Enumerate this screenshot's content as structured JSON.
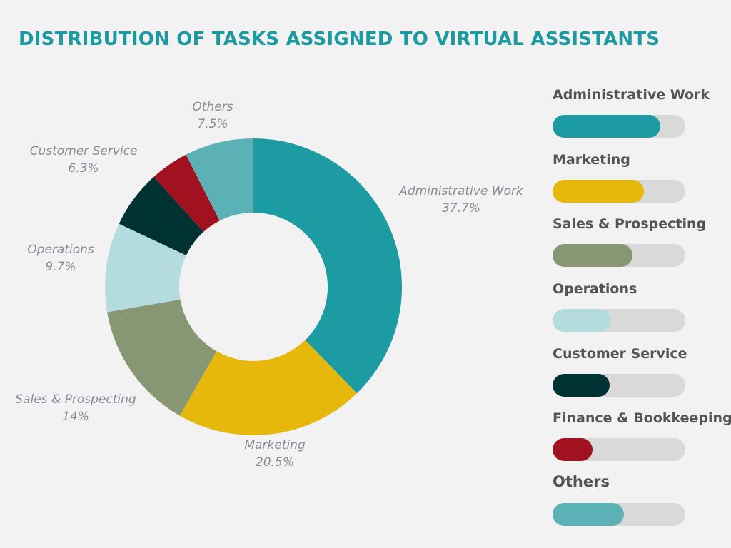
{
  "title": "DISTRIBUTION OF TASKS ASSIGNED TO VIRTUAL ASSISTANTS",
  "colors": {
    "title": "#1c9aa2",
    "background": "#f2f2f2",
    "label_text": "#8a8a96",
    "legend_text": "#545454",
    "track": "#d9d9d9"
  },
  "chart_data": {
    "type": "pie",
    "variant": "donut",
    "title": "DISTRIBUTION OF TASKS ASSIGNED TO VIRTUAL ASSISTANTS",
    "slices": [
      {
        "label": "Administrative Work",
        "value": 37.7,
        "value_text": "37.7%",
        "color": "#1c9ba3"
      },
      {
        "label": "Marketing",
        "value": 20.5,
        "value_text": "20.5%",
        "color": "#e5b80b"
      },
      {
        "label": "Sales & Prospecting",
        "value": 14,
        "value_text": "14%",
        "color": "#879673"
      },
      {
        "label": "Operations",
        "value": 9.7,
        "value_text": "9.7%",
        "color": "#b4dcdf"
      },
      {
        "label": "Customer Service",
        "value": 6.3,
        "value_text": "6.3%",
        "color": "#003133"
      },
      {
        "label": "Finance & Bookkeeping",
        "value": 4.2,
        "value_text": "",
        "color": "#a11220"
      },
      {
        "label": "Others",
        "value": 7.5,
        "value_text": "7.5%",
        "color": "#5bb1b6"
      }
    ]
  },
  "legend": {
    "items": [
      {
        "label": "Administrative Work",
        "fill": 0.81,
        "color": "#1c9ba3"
      },
      {
        "label": "Marketing",
        "fill": 0.69,
        "color": "#e5b80b"
      },
      {
        "label": "Sales & Prospecting",
        "fill": 0.6,
        "color": "#879673"
      },
      {
        "label": "Operations",
        "fill": 0.44,
        "color": "#b4dcdf"
      },
      {
        "label": "Customer Service",
        "fill": 0.43,
        "color": "#003133"
      },
      {
        "label": "Finance & Bookkeeping",
        "fill": 0.3,
        "color": "#a11220"
      },
      {
        "label": "Others",
        "fill": 0.54,
        "color": "#5bb1b6"
      }
    ]
  }
}
